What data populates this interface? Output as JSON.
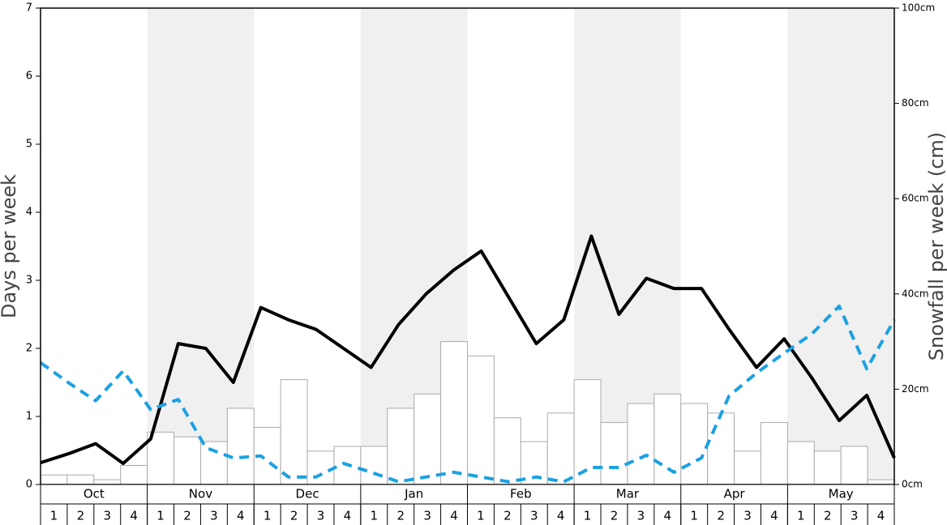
{
  "chart_data": {
    "type": "combo",
    "y_label": "Days per week",
    "y2_label": "Snowfall per week (cm)",
    "ylim": [
      0,
      7
    ],
    "yticks": [
      0,
      1,
      2,
      3,
      4,
      5,
      6,
      7
    ],
    "y2lim": [
      0,
      100
    ],
    "y2ticks": [
      {
        "value": 0,
        "label": "0cm"
      },
      {
        "value": 20,
        "label": "20cm"
      },
      {
        "value": 40,
        "label": "40cm"
      },
      {
        "value": 60,
        "label": "60cm"
      },
      {
        "value": 80,
        "label": "80cm"
      },
      {
        "value": 100,
        "label": "100cm"
      }
    ],
    "months": [
      "Oct",
      "Nov",
      "Dec",
      "Jan",
      "Feb",
      "Mar",
      "Apr",
      "May"
    ],
    "shaded_months": [
      false,
      true,
      false,
      true,
      false,
      true,
      false,
      true
    ],
    "band_color": "#f0f0f0",
    "categories": [
      1,
      2,
      3,
      4,
      1,
      2,
      3,
      4,
      1,
      2,
      3,
      4,
      1,
      2,
      3,
      4,
      1,
      2,
      3,
      4,
      1,
      2,
      3,
      4,
      1,
      2,
      3,
      4,
      1,
      2,
      3,
      4
    ],
    "series": [
      {
        "type": "bar",
        "axis": "y2",
        "color": "#ffffff",
        "stroke": "#aaaaaa",
        "values": [
          2,
          2,
          1,
          4,
          11,
          10,
          9,
          16,
          12,
          22,
          7,
          8,
          8,
          16,
          19,
          30,
          27,
          14,
          9,
          15,
          22,
          13,
          17,
          19,
          17,
          15,
          7,
          13,
          9,
          7,
          8,
          1
        ]
      },
      {
        "type": "line",
        "color": "#000000",
        "dash": false,
        "values": [
          0.32,
          0.45,
          0.6,
          0.31,
          0.67,
          2.07,
          2.0,
          1.5,
          2.6,
          2.42,
          2.28,
          2.0,
          1.72,
          2.35,
          2.8,
          3.15,
          3.43,
          2.75,
          2.07,
          2.42,
          3.65,
          2.5,
          3.03,
          2.88,
          2.88,
          2.28,
          1.72,
          2.14,
          1.57,
          0.94,
          1.31,
          0.39
        ]
      },
      {
        "type": "line",
        "color": "#1ba1e2",
        "dash": true,
        "values": [
          1.79,
          1.5,
          1.23,
          1.67,
          1.1,
          1.25,
          0.54,
          0.39,
          0.42,
          0.11,
          0.11,
          0.31,
          0.18,
          0.04,
          0.11,
          0.18,
          0.11,
          0.04,
          0.11,
          0.04,
          0.25,
          0.25,
          0.43,
          0.18,
          0.39,
          1.3,
          1.64,
          1.93,
          2.21,
          2.62,
          1.7,
          2.42
        ]
      }
    ]
  }
}
